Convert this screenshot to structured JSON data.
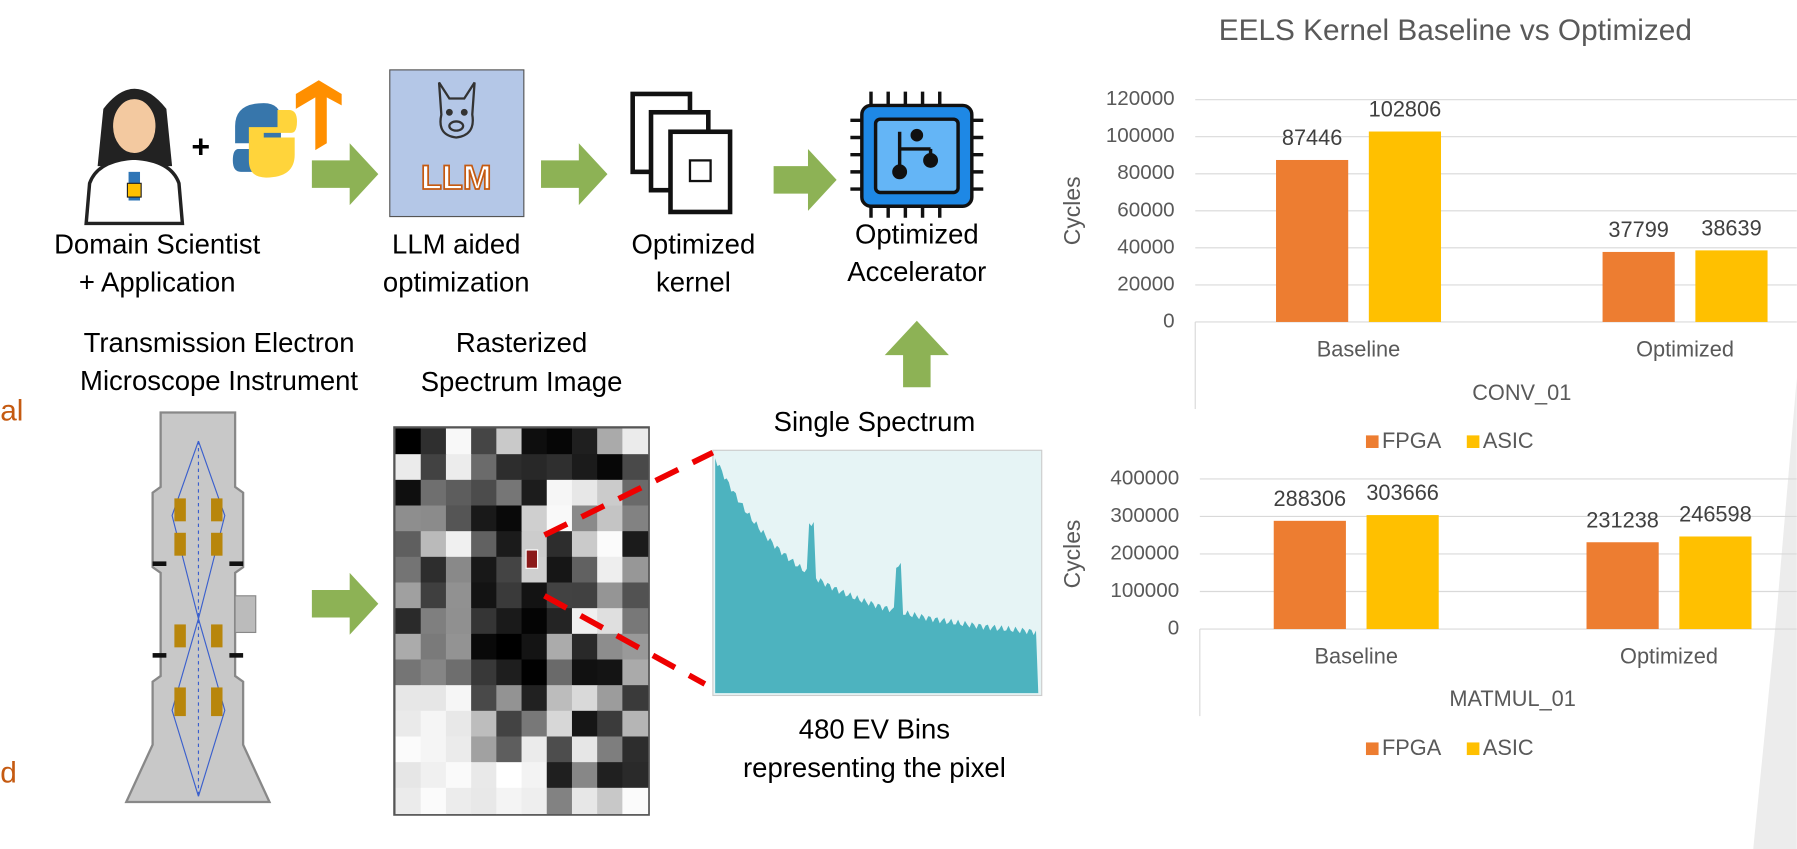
{
  "diagram": {
    "left_fragments": [
      "al",
      "d"
    ],
    "steps": [
      {
        "lines": [
          "Domain Scientist",
          "+ Application"
        ]
      },
      {
        "lines": [
          "LLM aided",
          "optimization"
        ],
        "icon": "LLM"
      },
      {
        "lines": [
          "Optimized",
          "kernel"
        ]
      },
      {
        "lines": [
          "Optimized",
          "Accelerator"
        ]
      }
    ],
    "instrument": {
      "lines": [
        "Transmission Electron",
        "Microscope Instrument"
      ]
    },
    "image": {
      "lines": [
        "Rasterized",
        "Spectrum Image"
      ]
    },
    "spectrum": {
      "title": "Single Spectrum",
      "lines": [
        "480 EV Bins",
        "representing the pixel"
      ]
    }
  },
  "chart_data": [
    {
      "type": "bar",
      "title": "EELS Kernel  Baseline vs Optimized",
      "y_label": "Cycles",
      "group": "CONV_01",
      "categories": [
        "Baseline",
        "Optimized"
      ],
      "series": [
        {
          "name": "FPGA",
          "color": "#ed7d31",
          "values": [
            87446,
            37799
          ]
        },
        {
          "name": "ASIC",
          "color": "#ffc000",
          "values": [
            102806,
            38639
          ]
        }
      ],
      "ylim": [
        0,
        120000
      ],
      "yticks": [
        0,
        20000,
        40000,
        60000,
        80000,
        100000,
        120000
      ],
      "grid": true,
      "legend": "bottom"
    },
    {
      "type": "bar",
      "y_label": "Cycles",
      "group": "MATMUL_01",
      "categories": [
        "Baseline",
        "Optimized"
      ],
      "series": [
        {
          "name": "FPGA",
          "color": "#ed7d31",
          "values": [
            288306,
            231238
          ]
        },
        {
          "name": "ASIC",
          "color": "#ffc000",
          "values": [
            303666,
            246598
          ]
        }
      ],
      "ylim": [
        0,
        400000
      ],
      "yticks": [
        0,
        100000,
        200000,
        300000,
        400000
      ],
      "grid": true,
      "legend": "bottom"
    }
  ]
}
